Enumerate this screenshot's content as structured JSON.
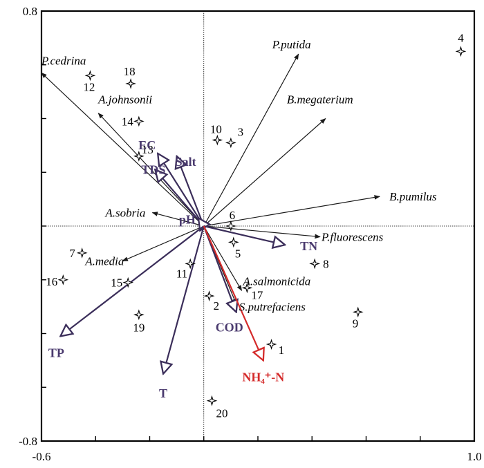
{
  "colors": {
    "species_arrow": "#1a1a1a",
    "env_arrow": "#3b2e5a",
    "env_label": "#4a3a6e",
    "highlight": "#d42a2a",
    "site_marker": "#000000",
    "frame": "#000000"
  },
  "chart_data": {
    "type": "scatter",
    "xlim": [
      -0.6,
      1.0
    ],
    "ylim": [
      -0.8,
      0.8
    ],
    "x_ticks": [
      -0.6,
      1.0
    ],
    "y_ticks": [
      0.8,
      -0.8
    ],
    "x_tick_labels": [
      "-0.6",
      "1.0"
    ],
    "y_tick_labels": [
      "0.8",
      "-0.8"
    ],
    "minor_tick_step": 0.2,
    "grid": false,
    "zero_lines": true,
    "sites": [
      {
        "label": "1",
        "x": 0.25,
        "y": -0.44
      },
      {
        "label": "2",
        "x": 0.02,
        "y": -0.26
      },
      {
        "label": "3",
        "x": 0.1,
        "y": 0.31
      },
      {
        "label": "4",
        "x": 0.95,
        "y": 0.65
      },
      {
        "label": "5",
        "x": 0.11,
        "y": -0.06
      },
      {
        "label": "6",
        "x": 0.1,
        "y": 0.0
      },
      {
        "label": "7",
        "x": -0.45,
        "y": -0.1
      },
      {
        "label": "8",
        "x": 0.41,
        "y": -0.14
      },
      {
        "label": "9",
        "x": 0.57,
        "y": -0.32
      },
      {
        "label": "10",
        "x": 0.05,
        "y": 0.32
      },
      {
        "label": "11",
        "x": -0.05,
        "y": -0.14
      },
      {
        "label": "12",
        "x": -0.42,
        "y": 0.56
      },
      {
        "label": "13",
        "x": -0.24,
        "y": 0.26
      },
      {
        "label": "14",
        "x": -0.24,
        "y": 0.39
      },
      {
        "label": "15",
        "x": -0.28,
        "y": -0.21
      },
      {
        "label": "16",
        "x": -0.52,
        "y": -0.2
      },
      {
        "label": "17",
        "x": 0.16,
        "y": -0.23
      },
      {
        "label": "18",
        "x": -0.27,
        "y": 0.53
      },
      {
        "label": "19",
        "x": -0.24,
        "y": -0.33
      },
      {
        "label": "20",
        "x": 0.03,
        "y": -0.65
      }
    ],
    "species": [
      {
        "label": "P.cedrina",
        "x": -0.6,
        "y": 0.57
      },
      {
        "label": "P.putida",
        "x": 0.35,
        "y": 0.64
      },
      {
        "label": "A.johnsonii",
        "x": -0.39,
        "y": 0.42
      },
      {
        "label": "B.megaterium",
        "x": 0.45,
        "y": 0.4
      },
      {
        "label": "B.pumilus",
        "x": 0.65,
        "y": 0.11
      },
      {
        "label": "A.sobria",
        "x": -0.19,
        "y": 0.05
      },
      {
        "label": "P.fluorescens",
        "x": 0.43,
        "y": -0.04
      },
      {
        "label": "A.media",
        "x": -0.3,
        "y": -0.13
      },
      {
        "label": "A.salmonicida",
        "x": 0.14,
        "y": -0.24
      },
      {
        "label": "S.putrefaciens",
        "x": 0.12,
        "y": -0.29
      }
    ],
    "environmental": [
      {
        "label": "EC",
        "x": -0.17,
        "y": 0.27,
        "highlight": false
      },
      {
        "label": "TDS",
        "x": -0.18,
        "y": 0.21,
        "highlight": false
      },
      {
        "label": "Salt",
        "x": -0.1,
        "y": 0.26,
        "highlight": false
      },
      {
        "label": "pH",
        "x": -0.02,
        "y": 0.03,
        "highlight": false
      },
      {
        "label": "TN",
        "x": 0.3,
        "y": -0.07,
        "highlight": false
      },
      {
        "label": "TP",
        "x": -0.53,
        "y": -0.41,
        "highlight": false
      },
      {
        "label": "T",
        "x": -0.15,
        "y": -0.55,
        "highlight": false
      },
      {
        "label": "COD",
        "x": 0.12,
        "y": -0.32,
        "highlight": false
      },
      {
        "label": "NH₄⁺-N",
        "x": 0.22,
        "y": -0.5,
        "highlight": true
      }
    ]
  }
}
